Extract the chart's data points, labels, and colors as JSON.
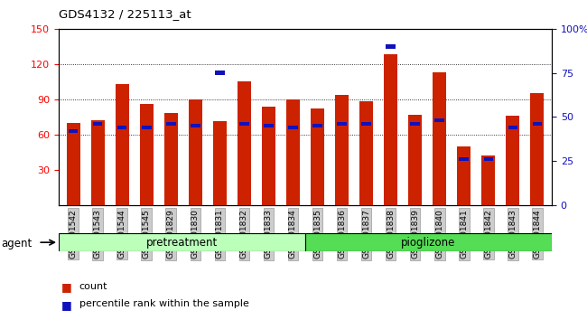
{
  "title": "GDS4132 / 225113_at",
  "categories": [
    "GSM201542",
    "GSM201543",
    "GSM201544",
    "GSM201545",
    "GSM201829",
    "GSM201830",
    "GSM201831",
    "GSM201832",
    "GSM201833",
    "GSM201834",
    "GSM201835",
    "GSM201836",
    "GSM201837",
    "GSM201838",
    "GSM201839",
    "GSM201840",
    "GSM201841",
    "GSM201842",
    "GSM201843",
    "GSM201844"
  ],
  "count_values": [
    70,
    72,
    103,
    86,
    78,
    90,
    71,
    105,
    84,
    90,
    82,
    94,
    88,
    128,
    77,
    113,
    50,
    42,
    76,
    95
  ],
  "percentile_values": [
    42,
    46,
    44,
    44,
    46,
    45,
    75,
    46,
    45,
    44,
    45,
    46,
    46,
    90,
    46,
    48,
    26,
    26,
    44,
    46
  ],
  "bar_color": "#cc2200",
  "percentile_color": "#1111bb",
  "ylim_left": [
    0,
    150
  ],
  "ylim_right": [
    0,
    100
  ],
  "yticks_left": [
    30,
    60,
    90,
    120,
    150
  ],
  "yticks_right": [
    0,
    25,
    50,
    75,
    100
  ],
  "right_tick_labels": [
    "0",
    "25",
    "50",
    "75",
    "100%"
  ],
  "grid_values": [
    60,
    90,
    120
  ],
  "pretreatment_count": 10,
  "pioglizone_count": 10,
  "group_label_1": "pretreatment",
  "group_label_2": "pioglizone",
  "group_color_1": "#bbffbb",
  "group_color_2": "#55dd55",
  "legend_count": "count",
  "legend_pct": "percentile rank within the sample",
  "agent_label": "agent",
  "bar_width": 0.55
}
